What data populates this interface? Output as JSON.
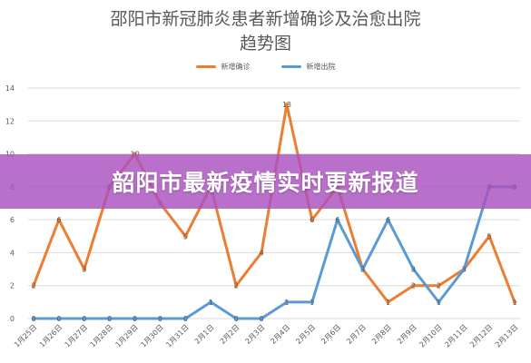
{
  "header": {
    "title_line1": "邵阳市新冠肺炎患者新增确诊及治愈出院",
    "title_line2": "趋势图"
  },
  "banner": {
    "text": "韶阳市最新疫情实时更新报道"
  },
  "chart_data": {
    "type": "line",
    "title": "邵阳市新冠肺炎患者新增确诊及治愈出院趋势图",
    "categories": [
      "1月25日",
      "1月26日",
      "1月27日",
      "1月28日",
      "1月29日",
      "1月30日",
      "1月31日",
      "2月1日",
      "2月2日",
      "2月3日",
      "2月4日",
      "2月5日",
      "2月6日",
      "2月7日",
      "2月8日",
      "2月9日",
      "2月10日",
      "2月11日",
      "2月12日",
      "2月13日"
    ],
    "series": [
      {
        "name": "新增确诊",
        "color": "#ED7D31",
        "values": [
          2,
          6,
          3,
          8,
          10,
          7,
          5,
          8,
          2,
          4,
          13,
          6,
          8,
          3,
          1,
          2,
          2,
          3,
          5,
          1
        ]
      },
      {
        "name": "新增出院",
        "color": "#5B9BD5",
        "values": [
          0,
          0,
          0,
          0,
          0,
          0,
          0,
          1,
          0,
          0,
          1,
          1,
          6,
          3,
          6,
          3,
          1,
          3,
          8,
          8
        ]
      }
    ],
    "ylim": [
      0,
      14
    ],
    "yticks": [
      0,
      2,
      4,
      6,
      8,
      10,
      12,
      14
    ],
    "grid": true,
    "legend": "top-center",
    "data_labels": true
  }
}
